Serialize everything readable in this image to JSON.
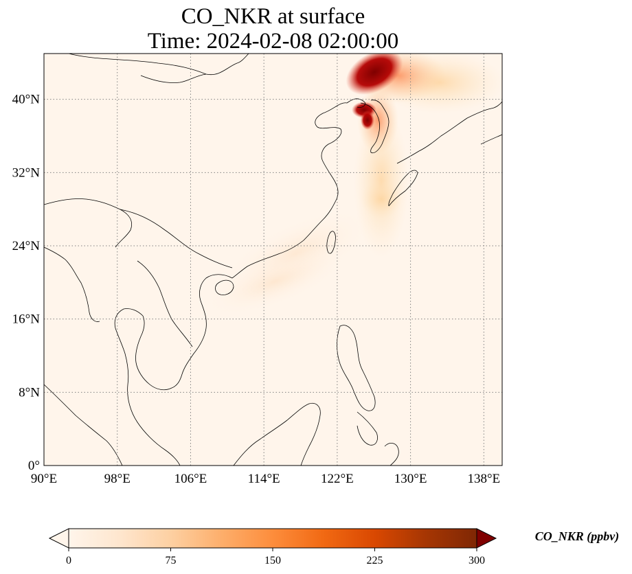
{
  "title": {
    "line1": "CO_NKR at surface",
    "line2": "Time: 2024-02-08 02:00:00"
  },
  "map": {
    "lon_range": [
      90,
      140
    ],
    "lat_range": [
      0,
      45
    ],
    "lon_ticks": [
      "90°E",
      "98°E",
      "106°E",
      "114°E",
      "122°E",
      "130°E",
      "138°E"
    ],
    "lat_ticks": [
      "0°",
      "8°N",
      "16°N",
      "24°N",
      "32°N",
      "40°N"
    ],
    "gridlines": true
  },
  "colorbar": {
    "label": "CO_NKR (ppbv)",
    "ticks": [
      "0",
      "75",
      "150",
      "225",
      "300"
    ],
    "range": [
      0,
      300
    ],
    "extend": "both",
    "colormap": [
      "#fff5eb",
      "#fee6ce",
      "#fdd0a2",
      "#fdae6b",
      "#fd8d3c",
      "#f16913",
      "#d94801",
      "#a63603",
      "#7f2704"
    ],
    "colors": {
      "background": "#fff5eb",
      "high": "#7f0000",
      "coastline": "#000000",
      "grid": "#808080"
    }
  }
}
